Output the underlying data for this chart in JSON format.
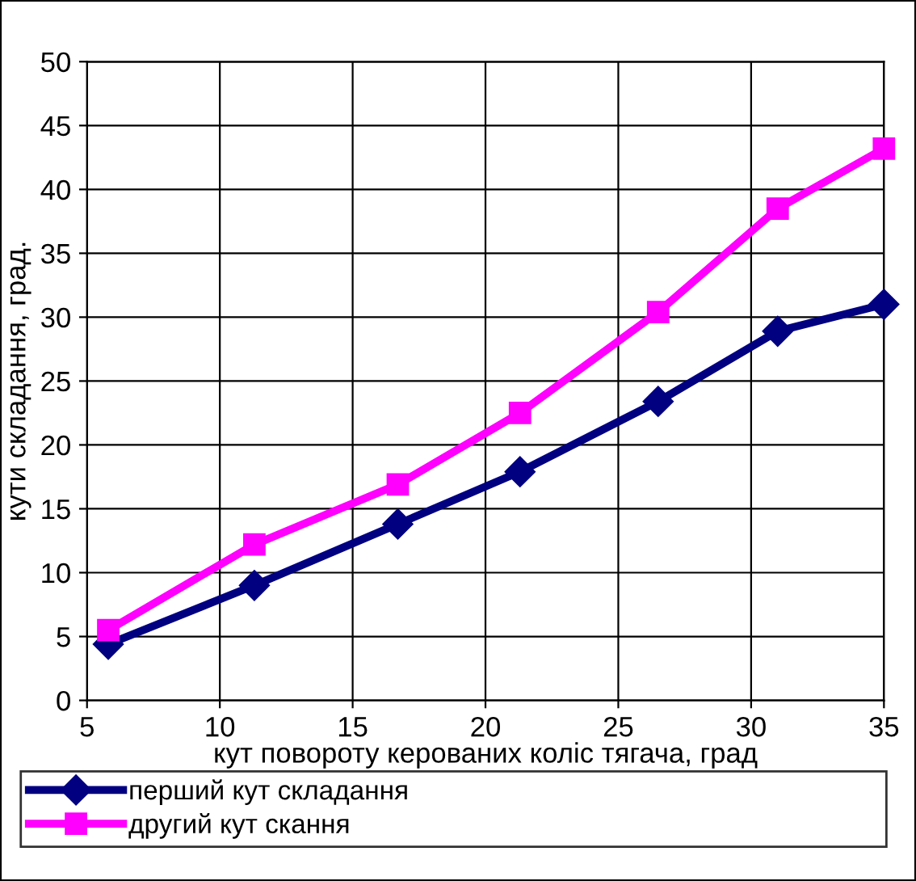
{
  "chart_data": {
    "type": "line",
    "xlabel": "кут повороту керованих коліс тягача, град",
    "ylabel": "кути складання, град.",
    "xlim": [
      5,
      35
    ],
    "xticks": [
      5,
      10,
      15,
      20,
      25,
      30,
      35
    ],
    "ylim": [
      0,
      50
    ],
    "yticks": [
      0,
      5,
      10,
      15,
      20,
      25,
      30,
      35,
      40,
      45,
      50
    ],
    "grid": true,
    "legend": "bottom",
    "line_style": "solid",
    "series": [
      {
        "name": "перший кут складання",
        "color": "#000080",
        "marker": "diamond",
        "x": [
          5.8,
          11.3,
          16.7,
          21.3,
          26.5,
          31.0,
          35.0
        ],
        "values": [
          4.4,
          9.0,
          13.8,
          17.9,
          23.4,
          28.9,
          31.0
        ]
      },
      {
        "name": "другий кут скання",
        "color": "#ff00ff",
        "marker": "square",
        "x": [
          5.8,
          11.3,
          16.7,
          21.3,
          26.5,
          31.0,
          35.0
        ],
        "values": [
          5.5,
          12.2,
          16.9,
          22.5,
          30.4,
          38.5,
          43.2
        ]
      }
    ]
  }
}
